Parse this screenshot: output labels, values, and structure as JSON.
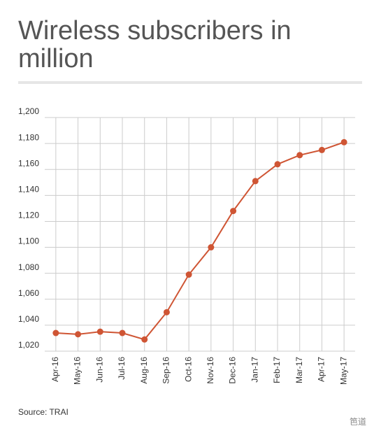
{
  "chart_data": {
    "type": "line",
    "title": "Wireless subscribers in million",
    "source": "Source: TRAI",
    "watermark": "笆道",
    "categories": [
      "Apr-16",
      "May-16",
      "Jun-16",
      "Jul-16",
      "Aug-16",
      "Sep-16",
      "Oct-16",
      "Nov-16",
      "Dec-16",
      "Jan-17",
      "Feb-17",
      "Mar-17",
      "Apr-17",
      "May-17"
    ],
    "series": [
      {
        "name": "Wireless subscribers",
        "color": "#cf5534",
        "values": [
          1034,
          1033,
          1035,
          1034,
          1029,
          1050,
          1079,
          1100,
          1128,
          1151,
          1164,
          1171,
          1175,
          1181
        ]
      }
    ],
    "ylim": [
      1020,
      1200
    ],
    "yticks": [
      {
        "value": 1020,
        "label": "1,020"
      },
      {
        "value": 1040,
        "label": "1,040"
      },
      {
        "value": 1060,
        "label": "1,060"
      },
      {
        "value": 1080,
        "label": "1,080"
      },
      {
        "value": 1100,
        "label": "1,100"
      },
      {
        "value": 1120,
        "label": "1,120"
      },
      {
        "value": 1140,
        "label": "1,140"
      },
      {
        "value": 1160,
        "label": "1,160"
      },
      {
        "value": 1180,
        "label": "1,180"
      },
      {
        "value": 1200,
        "label": "1,200"
      }
    ],
    "grid": true
  }
}
